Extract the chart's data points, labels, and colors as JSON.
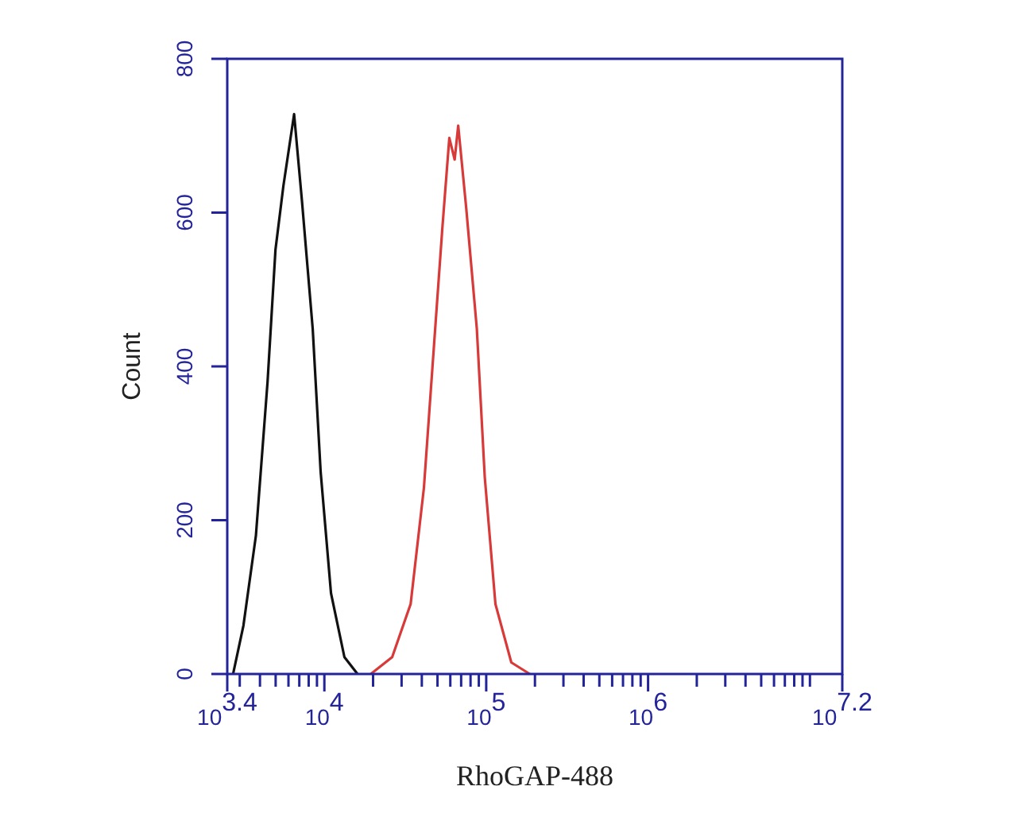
{
  "chart_data": {
    "type": "line",
    "xlabel": "RhoGAP-488",
    "ylabel": "Count",
    "log": "x",
    "grid": false,
    "marker": "none",
    "line_style": "solid",
    "xlim": [
      2512,
      15848932
    ],
    "ylim": [
      0,
      800
    ],
    "xticks": [
      {
        "value": 2512,
        "label": "10$^{3.4}$"
      },
      {
        "value": 3000,
        "label": null
      },
      {
        "value": 4000,
        "label": null
      },
      {
        "value": 5000,
        "label": null
      },
      {
        "value": 6000,
        "label": null
      },
      {
        "value": 7000,
        "label": null
      },
      {
        "value": 8000,
        "label": null
      },
      {
        "value": 9000,
        "label": null
      },
      {
        "value": 10000,
        "label": "10$^{4}$"
      },
      {
        "value": 20000,
        "label": null
      },
      {
        "value": 30000,
        "label": null
      },
      {
        "value": 40000,
        "label": null
      },
      {
        "value": 50000,
        "label": null
      },
      {
        "value": 60000,
        "label": null
      },
      {
        "value": 70000,
        "label": null
      },
      {
        "value": 80000,
        "label": null
      },
      {
        "value": 90000,
        "label": null
      },
      {
        "value": 100000,
        "label": "10$^{5}$"
      },
      {
        "value": 200000,
        "label": null
      },
      {
        "value": 300000,
        "label": null
      },
      {
        "value": 400000,
        "label": null
      },
      {
        "value": 500000,
        "label": null
      },
      {
        "value": 600000,
        "label": null
      },
      {
        "value": 700000,
        "label": null
      },
      {
        "value": 800000,
        "label": null
      },
      {
        "value": 900000,
        "label": null
      },
      {
        "value": 1000000,
        "label": "10$^{6}$"
      },
      {
        "value": 2000000,
        "label": null
      },
      {
        "value": 3000000,
        "label": null
      },
      {
        "value": 4000000,
        "label": null
      },
      {
        "value": 5000000,
        "label": null
      },
      {
        "value": 6000000,
        "label": null
      },
      {
        "value": 7000000,
        "label": null
      },
      {
        "value": 8000000,
        "label": null
      },
      {
        "value": 9000000,
        "label": null
      },
      {
        "value": 10000000,
        "label": null
      },
      {
        "value": 15848932,
        "label": "10$^{7.2}$"
      }
    ],
    "yticks": [
      0,
      200,
      400,
      600,
      800
    ],
    "series": [
      {
        "color": "#111111",
        "x": [
          2729,
          3162,
          3776,
          4457,
          4989,
          5585,
          6501,
          7278,
          8472,
          9484,
          10990,
          13300,
          16030
        ],
        "values": [
          0,
          63,
          180,
          380,
          552,
          635,
          728,
          614,
          449,
          263,
          105,
          22,
          0
        ]
      },
      {
        "color": "#d83a3a",
        "x": [
          19360,
          26240,
          34120,
          41210,
          47860,
          53580,
          59160,
          63830,
          67140,
          75160,
          87500,
          97950,
          114000,
          142900,
          185800
        ],
        "values": [
          0,
          22,
          91,
          242,
          435,
          580,
          697,
          669,
          713,
          607,
          449,
          256,
          91,
          15,
          0
        ]
      }
    ]
  }
}
